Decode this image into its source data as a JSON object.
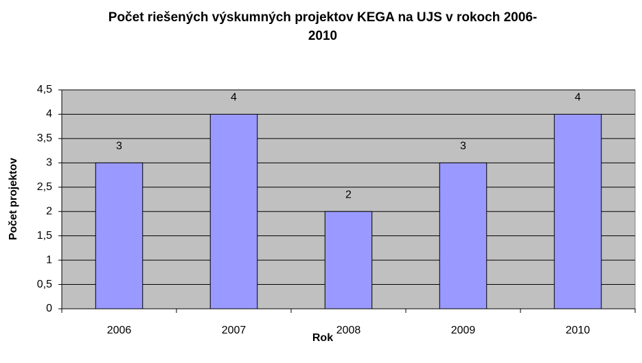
{
  "chart_data": {
    "type": "bar",
    "title": "Počet riešených výskumných projektov KEGA na UJS v rokoch 2006-2010",
    "x_label": "Rok",
    "y_label": "Počet projektov",
    "categories": [
      "2006",
      "2007",
      "2008",
      "2009",
      "2010"
    ],
    "values": [
      3,
      4,
      2,
      3,
      4
    ],
    "color": "#9999ff",
    "background": "#c0c0c0",
    "ylim": [
      0,
      4.5
    ],
    "yticks": [
      0,
      {
        "value": 0.5,
        "label": "0,5"
      },
      1,
      {
        "value": 1.5,
        "label": "1,5"
      },
      2,
      {
        "value": 2.5,
        "label": "2,5"
      },
      3,
      {
        "value": 3.5,
        "label": "3,5"
      },
      4,
      {
        "value": 4.5,
        "label": "4,5"
      }
    ],
    "grid": true
  }
}
